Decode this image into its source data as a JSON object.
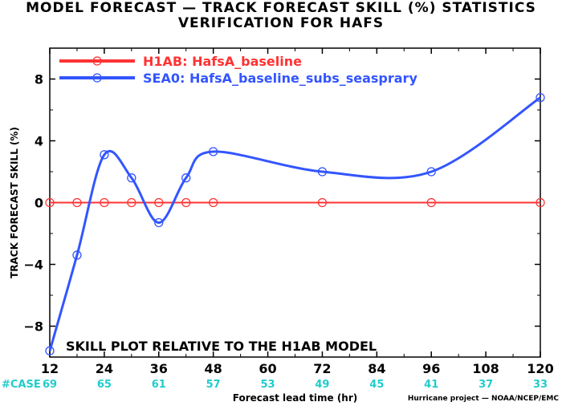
{
  "titles": {
    "line1": "MODEL FORECAST — TRACK FORECAST SKILL (%) STATISTICS",
    "line2": "VERIFICATION FOR HAFS"
  },
  "chart_data": {
    "type": "line",
    "ylabel": "TRACK FORECAST SKILL (%)",
    "xlabel": "Forecast lead time (hr)",
    "xlim": [
      12,
      120
    ],
    "ylim": [
      -10,
      10
    ],
    "xticks": [
      "12",
      "24",
      "36",
      "48",
      "60",
      "72",
      "84",
      "96",
      "108",
      "120"
    ],
    "yticks": [
      "8",
      "4",
      "0",
      "−4",
      "−8"
    ],
    "ytick_values": [
      8,
      4,
      0,
      -4,
      -8
    ],
    "series": [
      {
        "name": "H1AB: HafsA_baseline",
        "color": "#ff3333",
        "x": [
          12,
          18,
          24,
          30,
          36,
          42,
          48,
          72,
          96,
          120
        ],
        "y": [
          0,
          0,
          0,
          0,
          0,
          0,
          0,
          0,
          0,
          0
        ]
      },
      {
        "name": "SEA0: HafsA_baseline_subs_seasprary",
        "color": "#3355ff",
        "x": [
          12,
          18,
          24,
          30,
          36,
          42,
          48,
          72,
          96,
          120
        ],
        "y": [
          -9.6,
          -3.4,
          3.1,
          1.6,
          -1.3,
          1.6,
          3.3,
          2.0,
          2.0,
          6.8
        ]
      }
    ],
    "annotation": "SKILL PLOT RELATIVE TO THE H1AB MODEL",
    "case_label": "#CASE",
    "case_counts": [
      {
        "x": 12,
        "n": "69"
      },
      {
        "x": 24,
        "n": "65"
      },
      {
        "x": 36,
        "n": "61"
      },
      {
        "x": 48,
        "n": "57"
      },
      {
        "x": 60,
        "n": "53"
      },
      {
        "x": 72,
        "n": "49"
      },
      {
        "x": 84,
        "n": "45"
      },
      {
        "x": 96,
        "n": "41"
      },
      {
        "x": 108,
        "n": "37"
      },
      {
        "x": 120,
        "n": "33"
      }
    ],
    "case_color": "#22cccc",
    "grid": false,
    "legend_position": "top-left"
  },
  "footer": "Hurricane project — NOAA/NCEP/EMC"
}
